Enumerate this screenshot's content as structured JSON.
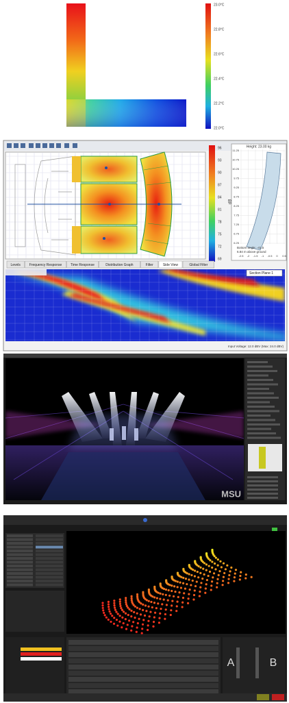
{
  "panels": {
    "thermal": {
      "scale_labels": [
        "23.0°C",
        "22.8°C",
        "22.6°C",
        "22.4°C",
        "22.2°C",
        "22.0°C"
      ]
    },
    "acoustic": {
      "scale_labels": [
        "96",
        "93",
        "90",
        "87",
        "84",
        "81",
        "78",
        "75",
        "72",
        "69"
      ],
      "scale_unit": "dB",
      "array_info": {
        "height": "Height: 23.00 kg",
        "bottom_angle": "Bottom angle: -41.5",
        "ground": "6.84 m above ground",
        "y_labels": [
          "11.25",
          "10.75",
          "10.25",
          "9.75",
          "9.25",
          "8.75",
          "8.25",
          "7.75",
          "7.25",
          "6.75",
          "6.25"
        ],
        "x_labels": [
          "-2.5",
          "-2",
          "-1.5",
          "-1",
          "-0.5",
          "0",
          "0.5"
        ]
      },
      "tabs": [
        "Levels",
        "Frequency Response",
        "Time Response",
        "Distribution Graph",
        "Filter",
        "Side View",
        "Global Filter"
      ],
      "section": "Section Plane 1",
      "status": "Input Voltage: 12.0 dBV (Max: 24.0 dBV)"
    },
    "stage": {
      "logo": "MSU"
    },
    "console": {
      "crossfade_a": "A",
      "crossfade_b": "B"
    }
  }
}
